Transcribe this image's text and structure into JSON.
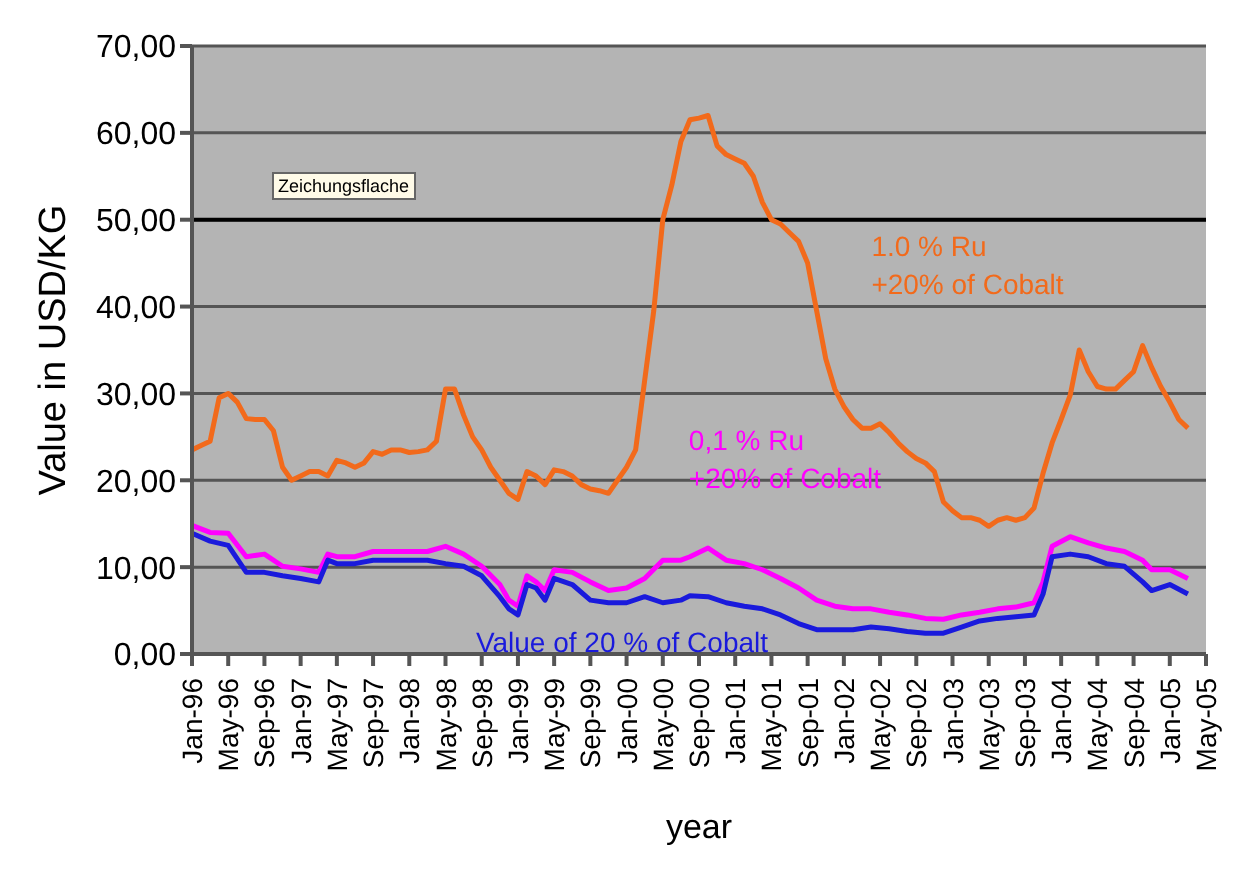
{
  "chart_data": {
    "type": "line",
    "xlabel": "year",
    "ylabel": "Value in USD/KG",
    "annotations": [
      "Zeichungsflache"
    ],
    "x": [
      "1996-01",
      "1996-02",
      "1996-03",
      "1996-04",
      "1996-05",
      "1996-06",
      "1996-07",
      "1996-08",
      "1996-09",
      "1996-10",
      "1996-11",
      "1996-12",
      "1997-01",
      "1997-02",
      "1997-03",
      "1997-04",
      "1997-05",
      "1997-06",
      "1997-07",
      "1997-08",
      "1997-09",
      "1997-10",
      "1997-11",
      "1997-12",
      "1998-01",
      "1998-02",
      "1998-03",
      "1998-04",
      "1998-05",
      "1998-06",
      "1998-07",
      "1998-08",
      "1998-09",
      "1998-10",
      "1998-11",
      "1998-12",
      "1999-01",
      "1999-02",
      "1999-03",
      "1999-04",
      "1999-05",
      "1999-06",
      "1999-07",
      "1999-08",
      "1999-09",
      "1999-10",
      "1999-11",
      "1999-12",
      "2000-01",
      "2000-02",
      "2000-03",
      "2000-04",
      "2000-05",
      "2000-06",
      "2000-07",
      "2000-08",
      "2000-09",
      "2000-10",
      "2000-11",
      "2000-12",
      "2001-01",
      "2001-02",
      "2001-03",
      "2001-04",
      "2001-05",
      "2001-06",
      "2001-07",
      "2001-08",
      "2001-09",
      "2001-10",
      "2001-11",
      "2001-12",
      "2002-01",
      "2002-02",
      "2002-03",
      "2002-04",
      "2002-05",
      "2002-06",
      "2002-07",
      "2002-08",
      "2002-09",
      "2002-10",
      "2002-11",
      "2002-12",
      "2003-01",
      "2003-02",
      "2003-03",
      "2003-04",
      "2003-05",
      "2003-06",
      "2003-07",
      "2003-08",
      "2003-09",
      "2003-10",
      "2003-11",
      "2003-12",
      "2004-01",
      "2004-02",
      "2004-03",
      "2004-04",
      "2004-05",
      "2004-06",
      "2004-07",
      "2004-08",
      "2004-09",
      "2004-10",
      "2004-11",
      "2004-12",
      "2005-01",
      "2005-02",
      "2005-03"
    ],
    "series": [
      {
        "name": "1.0 % Ru\n+20% of Cobalt",
        "color": "#f26a1b",
        "values": [
          23.5,
          24,
          24.5,
          29.5,
          30,
          29,
          27.1,
          27,
          27,
          25.7,
          21.5,
          20,
          20.5,
          21,
          21,
          20.5,
          22.3,
          22,
          21.5,
          22,
          23.3,
          23,
          23.5,
          23.5,
          23.2,
          23.3,
          23.5,
          24.5,
          30.5,
          30.5,
          27.5,
          25,
          23.5,
          21.5,
          20,
          18.5,
          17.8,
          21,
          20.5,
          19.5,
          21.2,
          21,
          20.5,
          19.5,
          19,
          18.8,
          18.5,
          20,
          21.5,
          23.5,
          31.5,
          39.5,
          50,
          54,
          59,
          61.5,
          61.7,
          62,
          58.5,
          57.5,
          57,
          56.5,
          55,
          52,
          50,
          49.5,
          48.5,
          47.5,
          45,
          39.5,
          34,
          30.5,
          28.5,
          27,
          26,
          26,
          26.5,
          25.5,
          24.3,
          23.3,
          22.5,
          22,
          21,
          17.5,
          16.5,
          15.7,
          15.7,
          15.4,
          14.7,
          15.4,
          15.7,
          15.4,
          15.7,
          16.8,
          20.8,
          24.3,
          27,
          29.8,
          35,
          32.5,
          30.8,
          30.5,
          30.5,
          31.5,
          32.5,
          35.5,
          33,
          30.8,
          29,
          27,
          26
        ]
      },
      {
        "name": "0,1 % Ru\n+20% of Cobalt",
        "color": "#ff00ff",
        "x": [
          "1996-01",
          "1996-03",
          "1996-05",
          "1996-07",
          "1996-09",
          "1996-11",
          "1997-01",
          "1997-03",
          "1997-04",
          "1997-05",
          "1997-07",
          "1997-09",
          "1997-11",
          "1998-01",
          "1998-03",
          "1998-05",
          "1998-07",
          "1998-09",
          "1998-11",
          "1998-12",
          "1999-01",
          "1999-02",
          "1999-03",
          "1999-04",
          "1999-05",
          "1999-07",
          "1999-09",
          "1999-11",
          "2000-01",
          "2000-03",
          "2000-05",
          "2000-07",
          "2000-08",
          "2000-10",
          "2000-12",
          "2001-02",
          "2001-04",
          "2001-06",
          "2001-08",
          "2001-10",
          "2001-12",
          "2002-02",
          "2002-04",
          "2002-06",
          "2002-08",
          "2002-10",
          "2002-12",
          "2003-02",
          "2003-04",
          "2003-06",
          "2003-08",
          "2003-10",
          "2003-11",
          "2003-12",
          "2004-02",
          "2004-04",
          "2004-06",
          "2004-08",
          "2004-10",
          "2004-11",
          "2005-01",
          "2005-03"
        ],
        "values": [
          14.8,
          14,
          13.9,
          11.2,
          11.5,
          10.1,
          9.8,
          9.4,
          11.5,
          11.2,
          11.2,
          11.8,
          11.8,
          11.8,
          11.8,
          12.4,
          11.5,
          10.1,
          8,
          6.2,
          5.5,
          9,
          8.3,
          7.3,
          9.7,
          9.4,
          8.3,
          7.3,
          7.6,
          8.7,
          10.8,
          10.8,
          11.2,
          12.2,
          10.8,
          10.4,
          9.7,
          8.7,
          7.6,
          6.2,
          5.5,
          5.2,
          5.2,
          4.8,
          4.5,
          4.1,
          4,
          4.5,
          4.8,
          5.2,
          5.4,
          5.9,
          8.3,
          12.4,
          13.5,
          12.8,
          12.2,
          11.8,
          10.8,
          9.7,
          9.7,
          8.7
        ]
      },
      {
        "name": "Value of 20 % of Cobalt",
        "color": "#1a1adc",
        "x": [
          "1996-01",
          "1996-03",
          "1996-05",
          "1996-07",
          "1996-09",
          "1996-11",
          "1997-01",
          "1997-03",
          "1997-04",
          "1997-05",
          "1997-07",
          "1997-09",
          "1997-11",
          "1998-01",
          "1998-03",
          "1998-05",
          "1998-07",
          "1998-09",
          "1998-11",
          "1998-12",
          "1999-01",
          "1999-02",
          "1999-03",
          "1999-04",
          "1999-05",
          "1999-07",
          "1999-09",
          "1999-11",
          "2000-01",
          "2000-03",
          "2000-05",
          "2000-07",
          "2000-08",
          "2000-10",
          "2000-12",
          "2001-02",
          "2001-04",
          "2001-06",
          "2001-08",
          "2001-10",
          "2001-12",
          "2002-02",
          "2002-04",
          "2002-06",
          "2002-08",
          "2002-10",
          "2002-12",
          "2003-02",
          "2003-04",
          "2003-06",
          "2003-08",
          "2003-10",
          "2003-11",
          "2003-12",
          "2004-02",
          "2004-04",
          "2004-06",
          "2004-08",
          "2004-10",
          "2004-11",
          "2005-01",
          "2005-03"
        ],
        "values": [
          13.9,
          13,
          12.5,
          9.4,
          9.4,
          9,
          8.7,
          8.3,
          10.8,
          10.4,
          10.4,
          10.8,
          10.8,
          10.8,
          10.8,
          10.4,
          10.1,
          9,
          6.6,
          5.2,
          4.5,
          8,
          7.6,
          6.2,
          8.7,
          8,
          6.2,
          5.9,
          5.9,
          6.6,
          5.9,
          6.2,
          6.7,
          6.6,
          5.9,
          5.5,
          5.2,
          4.5,
          3.5,
          2.8,
          2.8,
          2.8,
          3.1,
          2.9,
          2.6,
          2.4,
          2.4,
          3.1,
          3.8,
          4.1,
          4.3,
          4.5,
          6.9,
          11.2,
          11.5,
          11.2,
          10.4,
          10.1,
          8.3,
          7.3,
          8,
          6.9
        ]
      }
    ],
    "xlim": [
      "1996-01",
      "2005-05"
    ],
    "xticks": [
      {
        "value": "1996-01",
        "label": "Jan-96"
      },
      {
        "value": "1996-05",
        "label": "May-96"
      },
      {
        "value": "1996-09",
        "label": "Sep-96"
      },
      {
        "value": "1997-01",
        "label": "Jan-97"
      },
      {
        "value": "1997-05",
        "label": "May-97"
      },
      {
        "value": "1997-09",
        "label": "Sep-97"
      },
      {
        "value": "1998-01",
        "label": "Jan-98"
      },
      {
        "value": "1998-05",
        "label": "May-98"
      },
      {
        "value": "1998-09",
        "label": "Sep-98"
      },
      {
        "value": "1999-01",
        "label": "Jan-99"
      },
      {
        "value": "1999-05",
        "label": "May-99"
      },
      {
        "value": "1999-09",
        "label": "Sep-99"
      },
      {
        "value": "2000-01",
        "label": "Jan-00"
      },
      {
        "value": "2000-05",
        "label": "May-00"
      },
      {
        "value": "2000-09",
        "label": "Sep-00"
      },
      {
        "value": "2001-01",
        "label": "Jan-01"
      },
      {
        "value": "2001-05",
        "label": "May-01"
      },
      {
        "value": "2001-09",
        "label": "Sep-01"
      },
      {
        "value": "2002-01",
        "label": "Jan-02"
      },
      {
        "value": "2002-05",
        "label": "May-02"
      },
      {
        "value": "2002-09",
        "label": "Sep-02"
      },
      {
        "value": "2003-01",
        "label": "Jan-03"
      },
      {
        "value": "2003-05",
        "label": "May-03"
      },
      {
        "value": "2003-09",
        "label": "Sep-03"
      },
      {
        "value": "2004-01",
        "label": "Jan-04"
      },
      {
        "value": "2004-05",
        "label": "May-04"
      },
      {
        "value": "2004-09",
        "label": "Sep-04"
      },
      {
        "value": "2005-01",
        "label": "Jan-05"
      },
      {
        "value": "2005-05",
        "label": "May-05"
      }
    ],
    "ylim": [
      0,
      70
    ],
    "yticks": [
      {
        "value": 0,
        "label": "0,00"
      },
      {
        "value": 10,
        "label": "10,00"
      },
      {
        "value": 20,
        "label": "20,00"
      },
      {
        "value": 30,
        "label": "30,00"
      },
      {
        "value": 40,
        "label": "40,00"
      },
      {
        "value": 50,
        "label": "50,00"
      },
      {
        "value": 60,
        "label": "60,00"
      },
      {
        "value": 70,
        "label": "70,00"
      }
    ],
    "ref_lines": [
      {
        "axis": "y",
        "value": 50,
        "color": "#000000"
      }
    ],
    "grid": "y",
    "marker": "none",
    "line_style": "solid"
  }
}
